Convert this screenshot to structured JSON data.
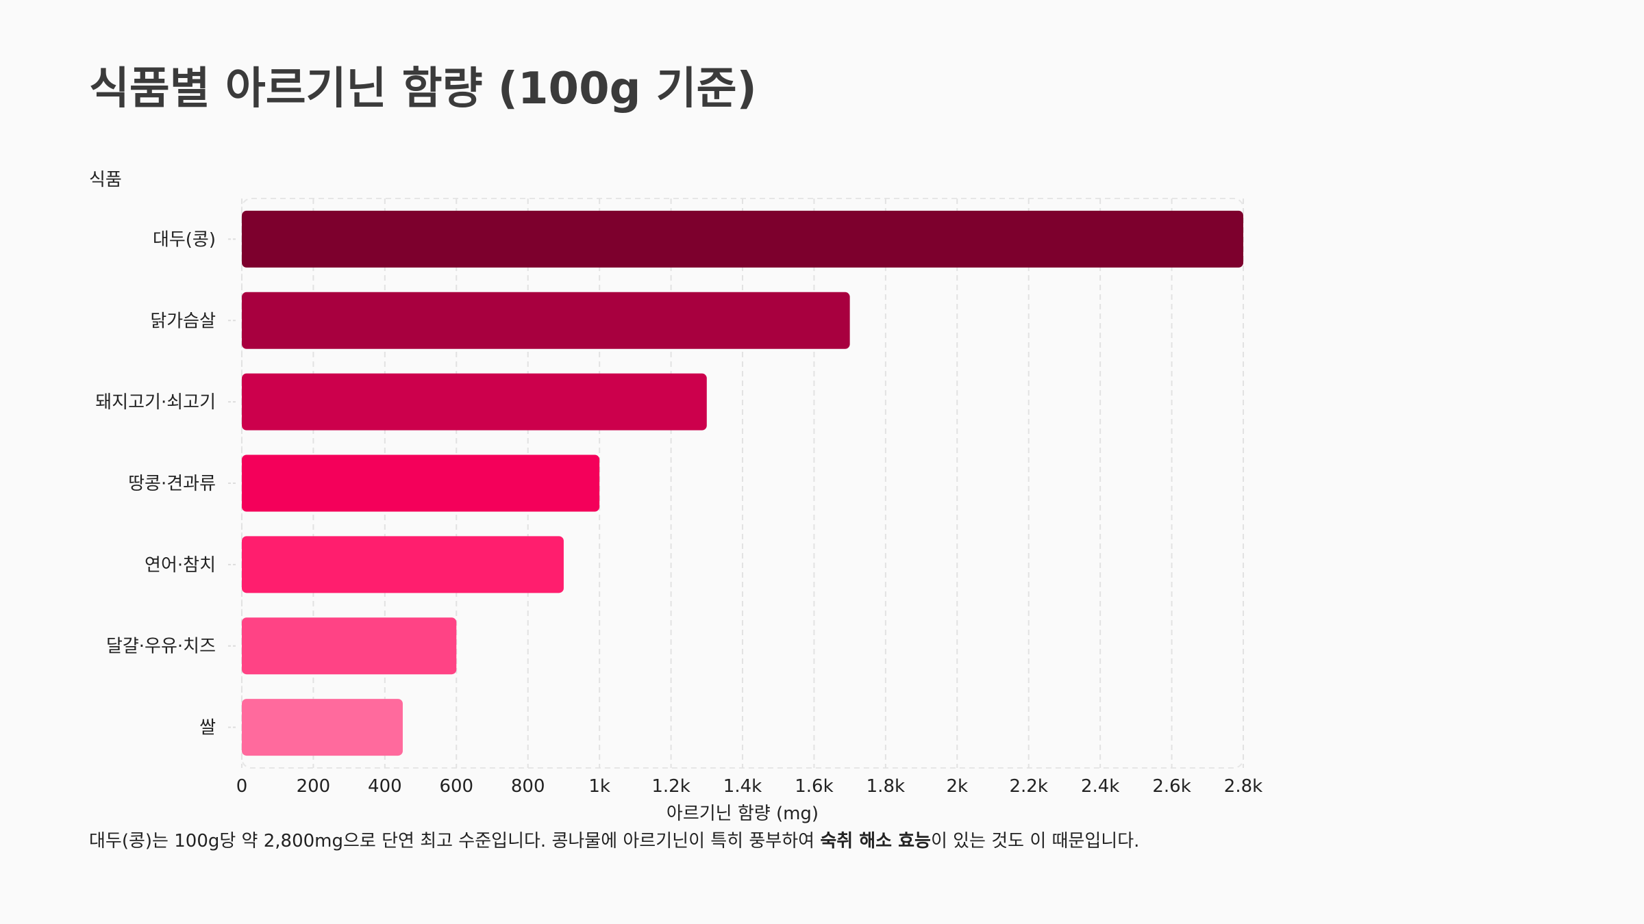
{
  "title": "식품별 아르기닌 함량 (100g 기준)",
  "note": {
    "before": "대두(콩)는 100g당 약 2,800mg으로 단연 최고 수준입니다. 콩나물에 아르기닌이 특히 풍부하여 ",
    "bold": "숙취 해소 효능",
    "after": "이 있는 것도 이 때문입니다."
  },
  "chart_data": {
    "type": "bar",
    "orientation": "horizontal",
    "title": "식품별 아르기닌 함량 (100g 기준)",
    "xlabel": "아르기닌 함량 (mg)",
    "ylabel": "식품",
    "categories": [
      "대두(콩)",
      "닭가슴살",
      "돼지고기·쇠고기",
      "땅콩·견과류",
      "연어·참치",
      "달걀·우유·치즈",
      "쌀"
    ],
    "values": [
      2800,
      1700,
      1300,
      1000,
      900,
      600,
      450
    ],
    "xlim": [
      0,
      2800
    ],
    "xticks": [
      0,
      200,
      400,
      600,
      800,
      1000,
      1200,
      1400,
      1600,
      1800,
      2000,
      2200,
      2400,
      2600,
      2800
    ],
    "xtick_labels": [
      "0",
      "200",
      "400",
      "600",
      "800",
      "1k",
      "1.2k",
      "1.4k",
      "1.6k",
      "1.8k",
      "2k",
      "2.2k",
      "2.4k",
      "2.6k",
      "2.8k"
    ],
    "colors": [
      "#7d002d",
      "#a8003f",
      "#cc004c",
      "#f4005a",
      "#ff1e6e",
      "#ff4385",
      "#ff6a9d"
    ],
    "grid": true,
    "legend": "none"
  }
}
